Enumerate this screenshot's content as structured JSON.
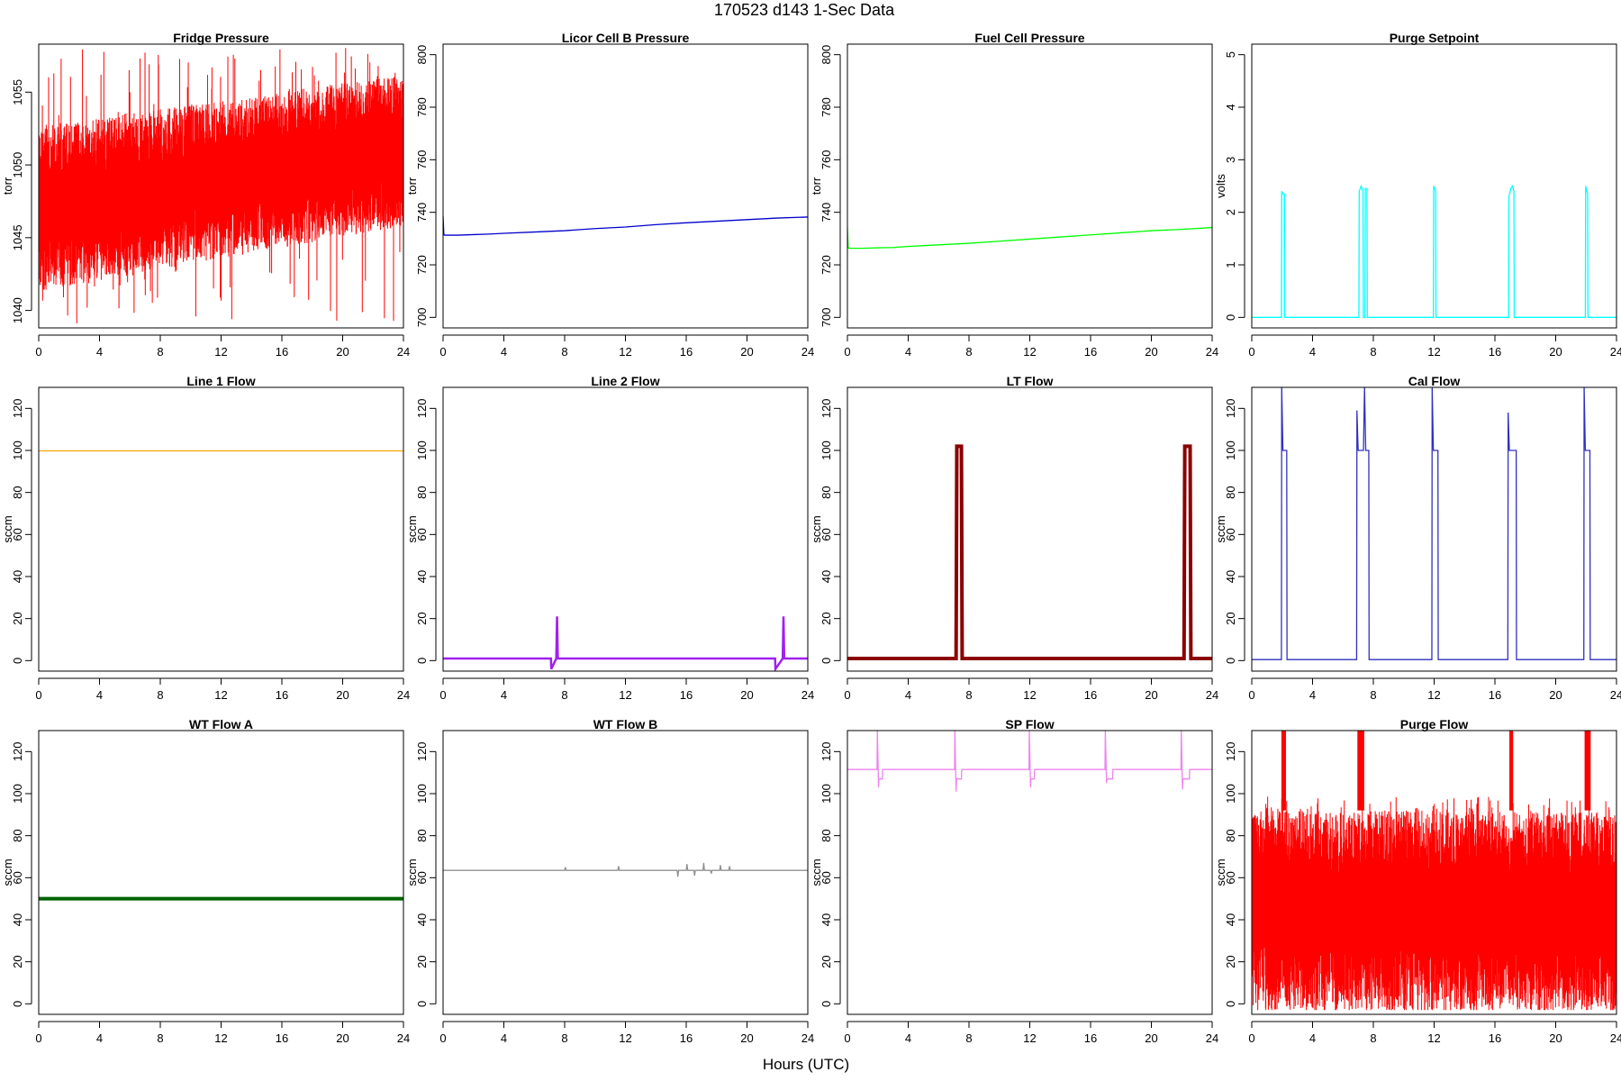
{
  "figure": {
    "title": "170523   d143   1-Sec Data",
    "xlabel": "Hours (UTC)"
  },
  "chart_data": [
    {
      "id": "fridge_pressure",
      "type": "line",
      "title": "Fridge Pressure",
      "ylabel": "torr",
      "color": "#ff0000",
      "xlim": [
        0,
        24
      ],
      "ylim": [
        1038.8,
        1058.3
      ],
      "xticks": [
        0,
        4,
        8,
        12,
        16,
        20,
        24
      ],
      "yticks": [
        1040,
        1045,
        1050,
        1055
      ],
      "noise": {
        "x": [
          0,
          24
        ],
        "center": [
          1047,
          1050.8
        ],
        "lower": [
          1041.3,
          1045.8
        ],
        "upper": [
          1052.7,
          1056.2
        ],
        "spike_low": 1039,
        "spike_high": 1058.1
      },
      "series": []
    },
    {
      "id": "licor_cell_b_pressure",
      "type": "line",
      "title": "Licor Cell B Pressure",
      "ylabel": "torr",
      "color": "#0000cd",
      "xlim": [
        0,
        24
      ],
      "ylim": [
        696,
        804
      ],
      "xticks": [
        0,
        4,
        8,
        12,
        16,
        20,
        24
      ],
      "yticks": [
        700,
        720,
        740,
        760,
        780,
        800
      ],
      "series": [
        {
          "x": [
            0,
            0.05,
            0.1,
            1,
            2,
            3,
            4,
            6,
            8,
            10,
            12,
            14,
            16,
            18,
            20,
            22,
            24
          ],
          "y": [
            738.5,
            731.5,
            731.3,
            731.3,
            731.5,
            731.7,
            732,
            732.5,
            733,
            733.8,
            734.4,
            735.3,
            736,
            736.6,
            737.2,
            737.8,
            738.2
          ]
        }
      ]
    },
    {
      "id": "fuel_cell_pressure",
      "type": "line",
      "title": "Fuel Cell Pressure",
      "ylabel": "torr",
      "color": "#00ff00",
      "xlim": [
        0,
        24
      ],
      "ylim": [
        696,
        804
      ],
      "xticks": [
        0,
        4,
        8,
        12,
        16,
        20,
        24
      ],
      "yticks": [
        700,
        720,
        740,
        760,
        780,
        800
      ],
      "series": [
        {
          "x": [
            0,
            0.05,
            0.1,
            1,
            2,
            3,
            4,
            6,
            8,
            10,
            12,
            14,
            16,
            18,
            20,
            22,
            24
          ],
          "y": [
            734,
            726.5,
            726.3,
            726.3,
            726.5,
            726.6,
            727,
            727.6,
            728.2,
            729,
            729.8,
            730.6,
            731.4,
            732.2,
            733,
            733.5,
            734.2
          ]
        }
      ]
    },
    {
      "id": "purge_setpoint",
      "type": "line",
      "title": "Purge Setpoint",
      "ylabel": "volts",
      "color": "#00ffff",
      "xlim": [
        0,
        24
      ],
      "ylim": [
        -0.2,
        5.2
      ],
      "xticks": [
        0,
        4,
        8,
        12,
        16,
        20,
        24
      ],
      "yticks": [
        0,
        1,
        2,
        3,
        4,
        5
      ],
      "series": [
        {
          "x": [
            0,
            1.95,
            1.97,
            2.05,
            2.15,
            2.17,
            7.05,
            7.07,
            7.2,
            7.32,
            7.34,
            7.45,
            7.47,
            7.58,
            7.6,
            11.95,
            11.97,
            12.1,
            12.12,
            16.9,
            16.92,
            17.05,
            17.15,
            17.25,
            17.27,
            21.95,
            21.97,
            22.05,
            22.1,
            22.12,
            24
          ],
          "y": [
            0,
            0,
            2.4,
            2.35,
            2.35,
            0,
            0,
            2.4,
            2.5,
            2.4,
            0,
            0,
            2.45,
            2.45,
            0,
            0,
            2.5,
            2.4,
            0,
            0,
            2.3,
            2.45,
            2.5,
            2.4,
            0,
            0,
            2.5,
            2.4,
            2.35,
            0,
            0
          ]
        }
      ]
    },
    {
      "id": "line1_flow",
      "type": "line",
      "title": "Line 1 Flow",
      "ylabel": "sccm",
      "color": "#ffa500",
      "xlim": [
        0,
        24
      ],
      "ylim": [
        -5,
        130
      ],
      "xticks": [
        0,
        4,
        8,
        12,
        16,
        20,
        24
      ],
      "yticks": [
        0,
        20,
        40,
        60,
        80,
        100,
        120
      ],
      "series": [
        {
          "x": [
            0,
            24
          ],
          "y": [
            99.8,
            99.8
          ]
        }
      ]
    },
    {
      "id": "line2_flow",
      "type": "line",
      "title": "Line 2 Flow",
      "ylabel": "sccm",
      "color": "#a020f0",
      "xlim": [
        0,
        24
      ],
      "ylim": [
        -5,
        130
      ],
      "xticks": [
        0,
        4,
        8,
        12,
        16,
        20,
        24
      ],
      "yticks": [
        0,
        20,
        40,
        60,
        80,
        100,
        120
      ],
      "series": [
        {
          "x": [
            0,
            7.1,
            7.12,
            7.45,
            7.5,
            7.55,
            21.85,
            21.87,
            22.35,
            22.4,
            22.45,
            24
          ],
          "y": [
            1,
            1,
            -4,
            1,
            21,
            1,
            1,
            -4,
            1,
            21,
            1,
            1
          ]
        }
      ]
    },
    {
      "id": "lt_flow",
      "type": "line",
      "title": "LT Flow",
      "ylabel": "sccm",
      "color": "#8b0000",
      "xlim": [
        0,
        24
      ],
      "ylim": [
        -5,
        130
      ],
      "xticks": [
        0,
        4,
        8,
        12,
        16,
        20,
        24
      ],
      "yticks": [
        0,
        20,
        40,
        60,
        80,
        100,
        120
      ],
      "series": [
        {
          "x": [
            0,
            7.15,
            7.2,
            7.5,
            7.55,
            22.15,
            22.2,
            22.55,
            22.6,
            24
          ],
          "y": [
            1,
            1,
            102,
            102,
            1,
            1,
            102,
            102,
            1,
            1
          ]
        }
      ]
    },
    {
      "id": "cal_flow",
      "type": "line",
      "title": "Cal Flow",
      "ylabel": "sccm",
      "color": "#3030c0",
      "xlim": [
        0,
        24
      ],
      "ylim": [
        -5,
        130
      ],
      "xticks": [
        0,
        4,
        8,
        12,
        16,
        20,
        24
      ],
      "yticks": [
        0,
        20,
        40,
        60,
        80,
        100,
        120
      ],
      "series": [
        {
          "x": [
            0,
            1.95,
            1.97,
            2.05,
            2.3,
            2.32,
            6.9,
            6.92,
            7.0,
            7.35,
            7.42,
            7.5,
            7.7,
            7.72,
            11.85,
            11.87,
            11.95,
            12.25,
            12.27,
            16.85,
            16.87,
            16.95,
            17.4,
            17.42,
            21.85,
            21.87,
            21.95,
            22.25,
            22.27,
            24
          ],
          "y": [
            0.5,
            0.5,
            130,
            100,
            100,
            0.5,
            0.5,
            119,
            100,
            100,
            130,
            100,
            100,
            0.5,
            0.5,
            130,
            100,
            100,
            0.5,
            0.5,
            118,
            100,
            100,
            0.5,
            0.5,
            130,
            100,
            100,
            0.5,
            0.5
          ]
        }
      ]
    },
    {
      "id": "wt_flow_a",
      "type": "line",
      "title": "WT Flow A",
      "ylabel": "sccm",
      "color": "#006400",
      "xlim": [
        0,
        24
      ],
      "ylim": [
        -5,
        130
      ],
      "xticks": [
        0,
        4,
        8,
        12,
        16,
        20,
        24
      ],
      "yticks": [
        0,
        20,
        40,
        60,
        80,
        100,
        120
      ],
      "series": [
        {
          "x": [
            0,
            24
          ],
          "y": [
            50,
            50
          ]
        }
      ]
    },
    {
      "id": "wt_flow_b",
      "type": "line",
      "title": "WT Flow B",
      "ylabel": "sccm",
      "color": "#909090",
      "xlim": [
        0,
        24
      ],
      "ylim": [
        -5,
        130
      ],
      "xticks": [
        0,
        4,
        8,
        12,
        16,
        20,
        24
      ],
      "yticks": [
        0,
        20,
        40,
        60,
        80,
        100,
        120
      ],
      "series": [
        {
          "x": [
            0,
            8,
            8.05,
            8.1,
            11.5,
            11.55,
            11.6,
            15.4,
            15.45,
            15.5,
            16,
            16.05,
            16.1,
            16.5,
            16.55,
            16.6,
            17.1,
            17.15,
            17.2,
            17.6,
            17.65,
            17.7,
            18.2,
            18.25,
            18.3,
            18.8,
            18.85,
            18.9,
            24
          ],
          "y": [
            63.5,
            63.5,
            65,
            63.5,
            63.5,
            65.5,
            63.5,
            63.5,
            60.5,
            63.5,
            63.5,
            66.5,
            63.5,
            63.5,
            61,
            63.5,
            63.5,
            67,
            63.5,
            63.5,
            62,
            63.5,
            63.5,
            66,
            63.5,
            63.5,
            65.5,
            63.5,
            63.5
          ]
        }
      ]
    },
    {
      "id": "sp_flow",
      "type": "line",
      "title": "SP Flow",
      "ylabel": "sccm",
      "color": "#ee82ee",
      "xlim": [
        0,
        24
      ],
      "ylim": [
        -5,
        130
      ],
      "xticks": [
        0,
        4,
        8,
        12,
        16,
        20,
        24
      ],
      "yticks": [
        0,
        20,
        40,
        60,
        80,
        100,
        120
      ],
      "series": [
        {
          "x": [
            0,
            1.95,
            1.97,
            2.05,
            2.07,
            2.3,
            2.32,
            7.05,
            7.07,
            7.15,
            7.18,
            7.5,
            7.52,
            11.95,
            11.97,
            12.05,
            12.08,
            12.3,
            12.32,
            16.95,
            16.97,
            17.05,
            17.08,
            17.45,
            17.47,
            21.95,
            21.97,
            22.05,
            22.08,
            22.5,
            22.52,
            24
          ],
          "y": [
            111.5,
            111.5,
            130,
            103,
            107,
            107,
            111.5,
            111.5,
            130,
            101,
            107,
            107,
            111.5,
            111.5,
            130,
            103,
            107,
            107,
            111.5,
            111.5,
            130,
            105,
            107,
            107,
            111.5,
            111.5,
            130,
            102,
            107,
            107,
            111.5,
            111.5
          ]
        }
      ]
    },
    {
      "id": "purge_flow",
      "type": "line",
      "title": "Purge Flow",
      "ylabel": "sccm",
      "color": "#ff0000",
      "xlim": [
        0,
        24
      ],
      "ylim": [
        -5,
        130
      ],
      "xticks": [
        0,
        4,
        8,
        12,
        16,
        20,
        24
      ],
      "yticks": [
        0,
        20,
        40,
        60,
        80,
        100,
        120
      ],
      "noise": {
        "x": [
          0,
          24
        ],
        "center": [
          45,
          45
        ],
        "lower": [
          -3,
          -3
        ],
        "upper": [
          92,
          92
        ],
        "spike_low": -3,
        "spike_high": 99
      },
      "bursts": [
        [
          1.95,
          2.25
        ],
        [
          6.95,
          7.4
        ],
        [
          16.95,
          17.2
        ],
        [
          21.9,
          22.3
        ]
      ],
      "series": []
    }
  ]
}
